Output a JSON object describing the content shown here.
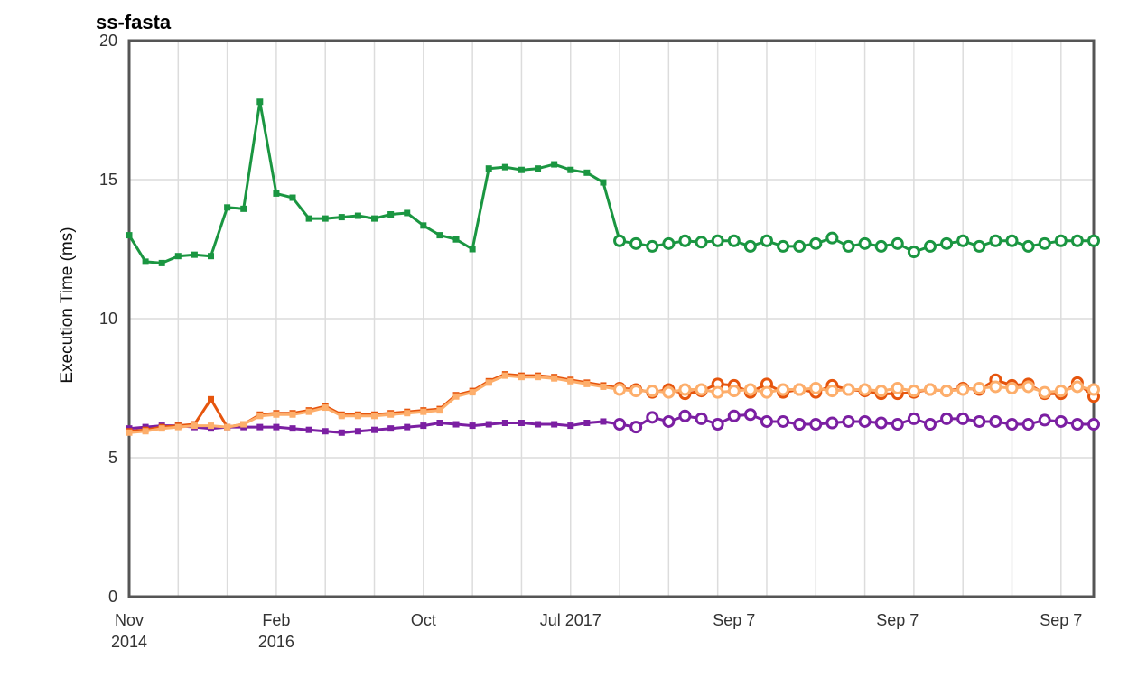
{
  "chart_data": {
    "type": "line",
    "title": "ss-fasta",
    "xlabel": "",
    "ylabel": "Execution Time (ms)",
    "ylim": [
      0,
      20
    ],
    "yticks": [
      "0",
      "5",
      "10",
      "15",
      "20"
    ],
    "grid": true,
    "legend": "none",
    "x_tick_labels": [
      {
        "idx": 0,
        "line1": "Nov",
        "line2": "2014"
      },
      {
        "idx": 9,
        "line1": "Feb",
        "line2": "2016"
      },
      {
        "idx": 18,
        "line1": "Oct",
        "line2": ""
      },
      {
        "idx": 27,
        "line1": "Jul 2017",
        "line2": ""
      },
      {
        "idx": 37,
        "line1": "Sep 7",
        "line2": ""
      },
      {
        "idx": 47,
        "line1": "Sep 7",
        "line2": ""
      },
      {
        "idx": 57,
        "line1": "Sep 7",
        "line2": ""
      }
    ],
    "point_count": 60,
    "series": [
      {
        "color": "#1a9641",
        "values": [
          13.0,
          12.05,
          12.0,
          12.25,
          12.3,
          12.25,
          14.0,
          13.95,
          17.8,
          14.5,
          14.35,
          13.6,
          13.6,
          13.65,
          13.7,
          13.6,
          13.75,
          13.8,
          13.35,
          13.0,
          12.85,
          12.5,
          15.4,
          15.45,
          15.35,
          15.4,
          15.55,
          15.35,
          15.25,
          14.9,
          12.8,
          12.7,
          12.6,
          12.7,
          12.8,
          12.75,
          12.8,
          12.8,
          12.6,
          12.8,
          12.6,
          12.6,
          12.7,
          12.9,
          12.6,
          12.7,
          12.6,
          12.7,
          12.4,
          12.6,
          12.7,
          12.8,
          12.6,
          12.8,
          12.8,
          12.6,
          12.7,
          12.8,
          12.8,
          12.8
        ],
        "marker_split": 30
      },
      {
        "color": "#e6550d",
        "values": [
          5.95,
          6.0,
          6.1,
          6.15,
          6.2,
          7.1,
          6.1,
          6.2,
          6.55,
          6.6,
          6.6,
          6.7,
          6.85,
          6.55,
          6.55,
          6.55,
          6.6,
          6.65,
          6.7,
          6.75,
          7.25,
          7.4,
          7.75,
          8.0,
          7.95,
          7.95,
          7.9,
          7.8,
          7.7,
          7.6,
          7.5,
          7.45,
          7.35,
          7.45,
          7.3,
          7.4,
          7.65,
          7.6,
          7.35,
          7.65,
          7.35,
          7.45,
          7.35,
          7.6,
          7.45,
          7.4,
          7.3,
          7.3,
          7.35,
          7.45,
          7.4,
          7.5,
          7.45,
          7.8,
          7.6,
          7.65,
          7.3,
          7.3,
          7.7,
          7.2
        ],
        "marker_split": 30
      },
      {
        "color": "#fdae6b",
        "values": [
          5.9,
          5.95,
          6.05,
          6.1,
          6.15,
          6.15,
          6.1,
          6.2,
          6.5,
          6.55,
          6.55,
          6.65,
          6.8,
          6.5,
          6.5,
          6.5,
          6.55,
          6.6,
          6.65,
          6.7,
          7.2,
          7.35,
          7.7,
          7.95,
          7.9,
          7.9,
          7.85,
          7.75,
          7.65,
          7.55,
          7.45,
          7.4,
          7.4,
          7.35,
          7.45,
          7.45,
          7.35,
          7.4,
          7.45,
          7.35,
          7.45,
          7.45,
          7.5,
          7.4,
          7.45,
          7.45,
          7.4,
          7.5,
          7.4,
          7.45,
          7.4,
          7.45,
          7.5,
          7.55,
          7.5,
          7.55,
          7.35,
          7.4,
          7.55,
          7.45
        ],
        "marker_split": 30
      },
      {
        "color": "#7b1fa2",
        "values": [
          6.05,
          6.1,
          6.15,
          6.15,
          6.1,
          6.05,
          6.1,
          6.1,
          6.1,
          6.1,
          6.05,
          6.0,
          5.95,
          5.9,
          5.95,
          6.0,
          6.05,
          6.1,
          6.15,
          6.25,
          6.2,
          6.15,
          6.2,
          6.25,
          6.25,
          6.2,
          6.2,
          6.15,
          6.25,
          6.3,
          6.2,
          6.1,
          6.45,
          6.3,
          6.5,
          6.4,
          6.2,
          6.5,
          6.55,
          6.3,
          6.3,
          6.2,
          6.2,
          6.25,
          6.3,
          6.3,
          6.25,
          6.2,
          6.4,
          6.2,
          6.4,
          6.4,
          6.3,
          6.3,
          6.2,
          6.2,
          6.35,
          6.3,
          6.2,
          6.2
        ],
        "marker_split": 30
      }
    ]
  }
}
